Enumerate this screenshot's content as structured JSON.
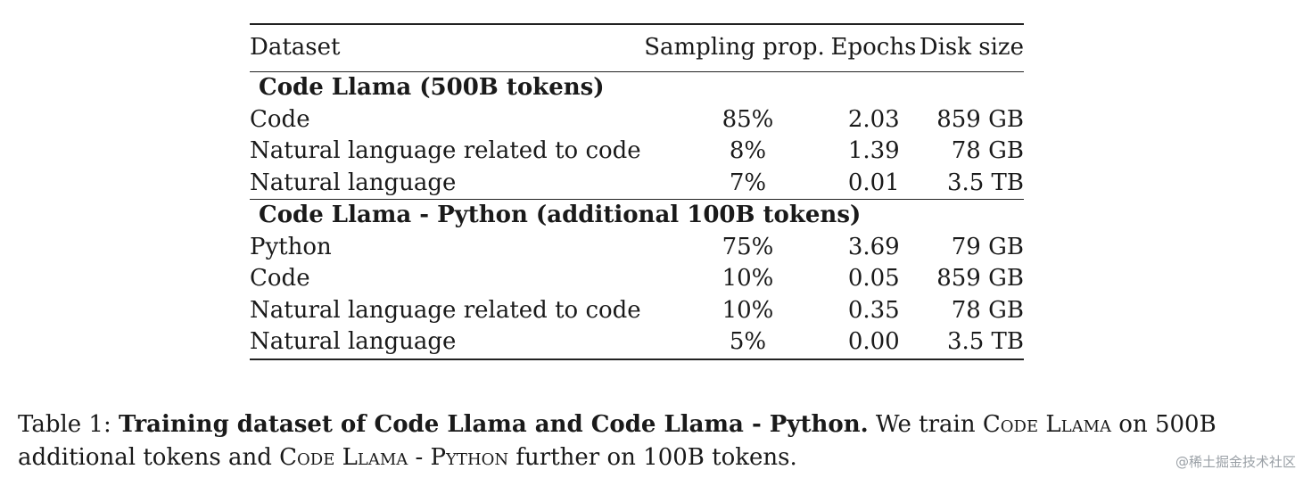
{
  "table": {
    "headers": [
      "Dataset",
      "Sampling prop.",
      "Epochs",
      "Disk size"
    ],
    "groups": [
      {
        "title": "Code Llama (500B tokens)",
        "rows": [
          [
            "Code",
            "85%",
            "2.03",
            "859 GB"
          ],
          [
            "Natural language related to code",
            "8%",
            "1.39",
            "78 GB"
          ],
          [
            "Natural language",
            "7%",
            "0.01",
            "3.5 TB"
          ]
        ]
      },
      {
        "title": "Code Llama - Python (additional 100B tokens)",
        "rows": [
          [
            "Python",
            "75%",
            "3.69",
            "79 GB"
          ],
          [
            "Code",
            "10%",
            "0.05",
            "859 GB"
          ],
          [
            "Natural language related to code",
            "10%",
            "0.35",
            "78 GB"
          ],
          [
            "Natural language",
            "5%",
            "0.00",
            "3.5 TB"
          ]
        ]
      }
    ]
  },
  "caption": {
    "label": "Table 1: ",
    "bold": "Training dataset of Code Llama and Code Llama - Python.",
    "t1": " We train ",
    "sc1": "Code Llama",
    "t2": " on 500B additional tokens and ",
    "sc2": "Code Llama - Python",
    "t3": " further on 100B tokens."
  },
  "watermark": "@稀土掘金技术社区"
}
